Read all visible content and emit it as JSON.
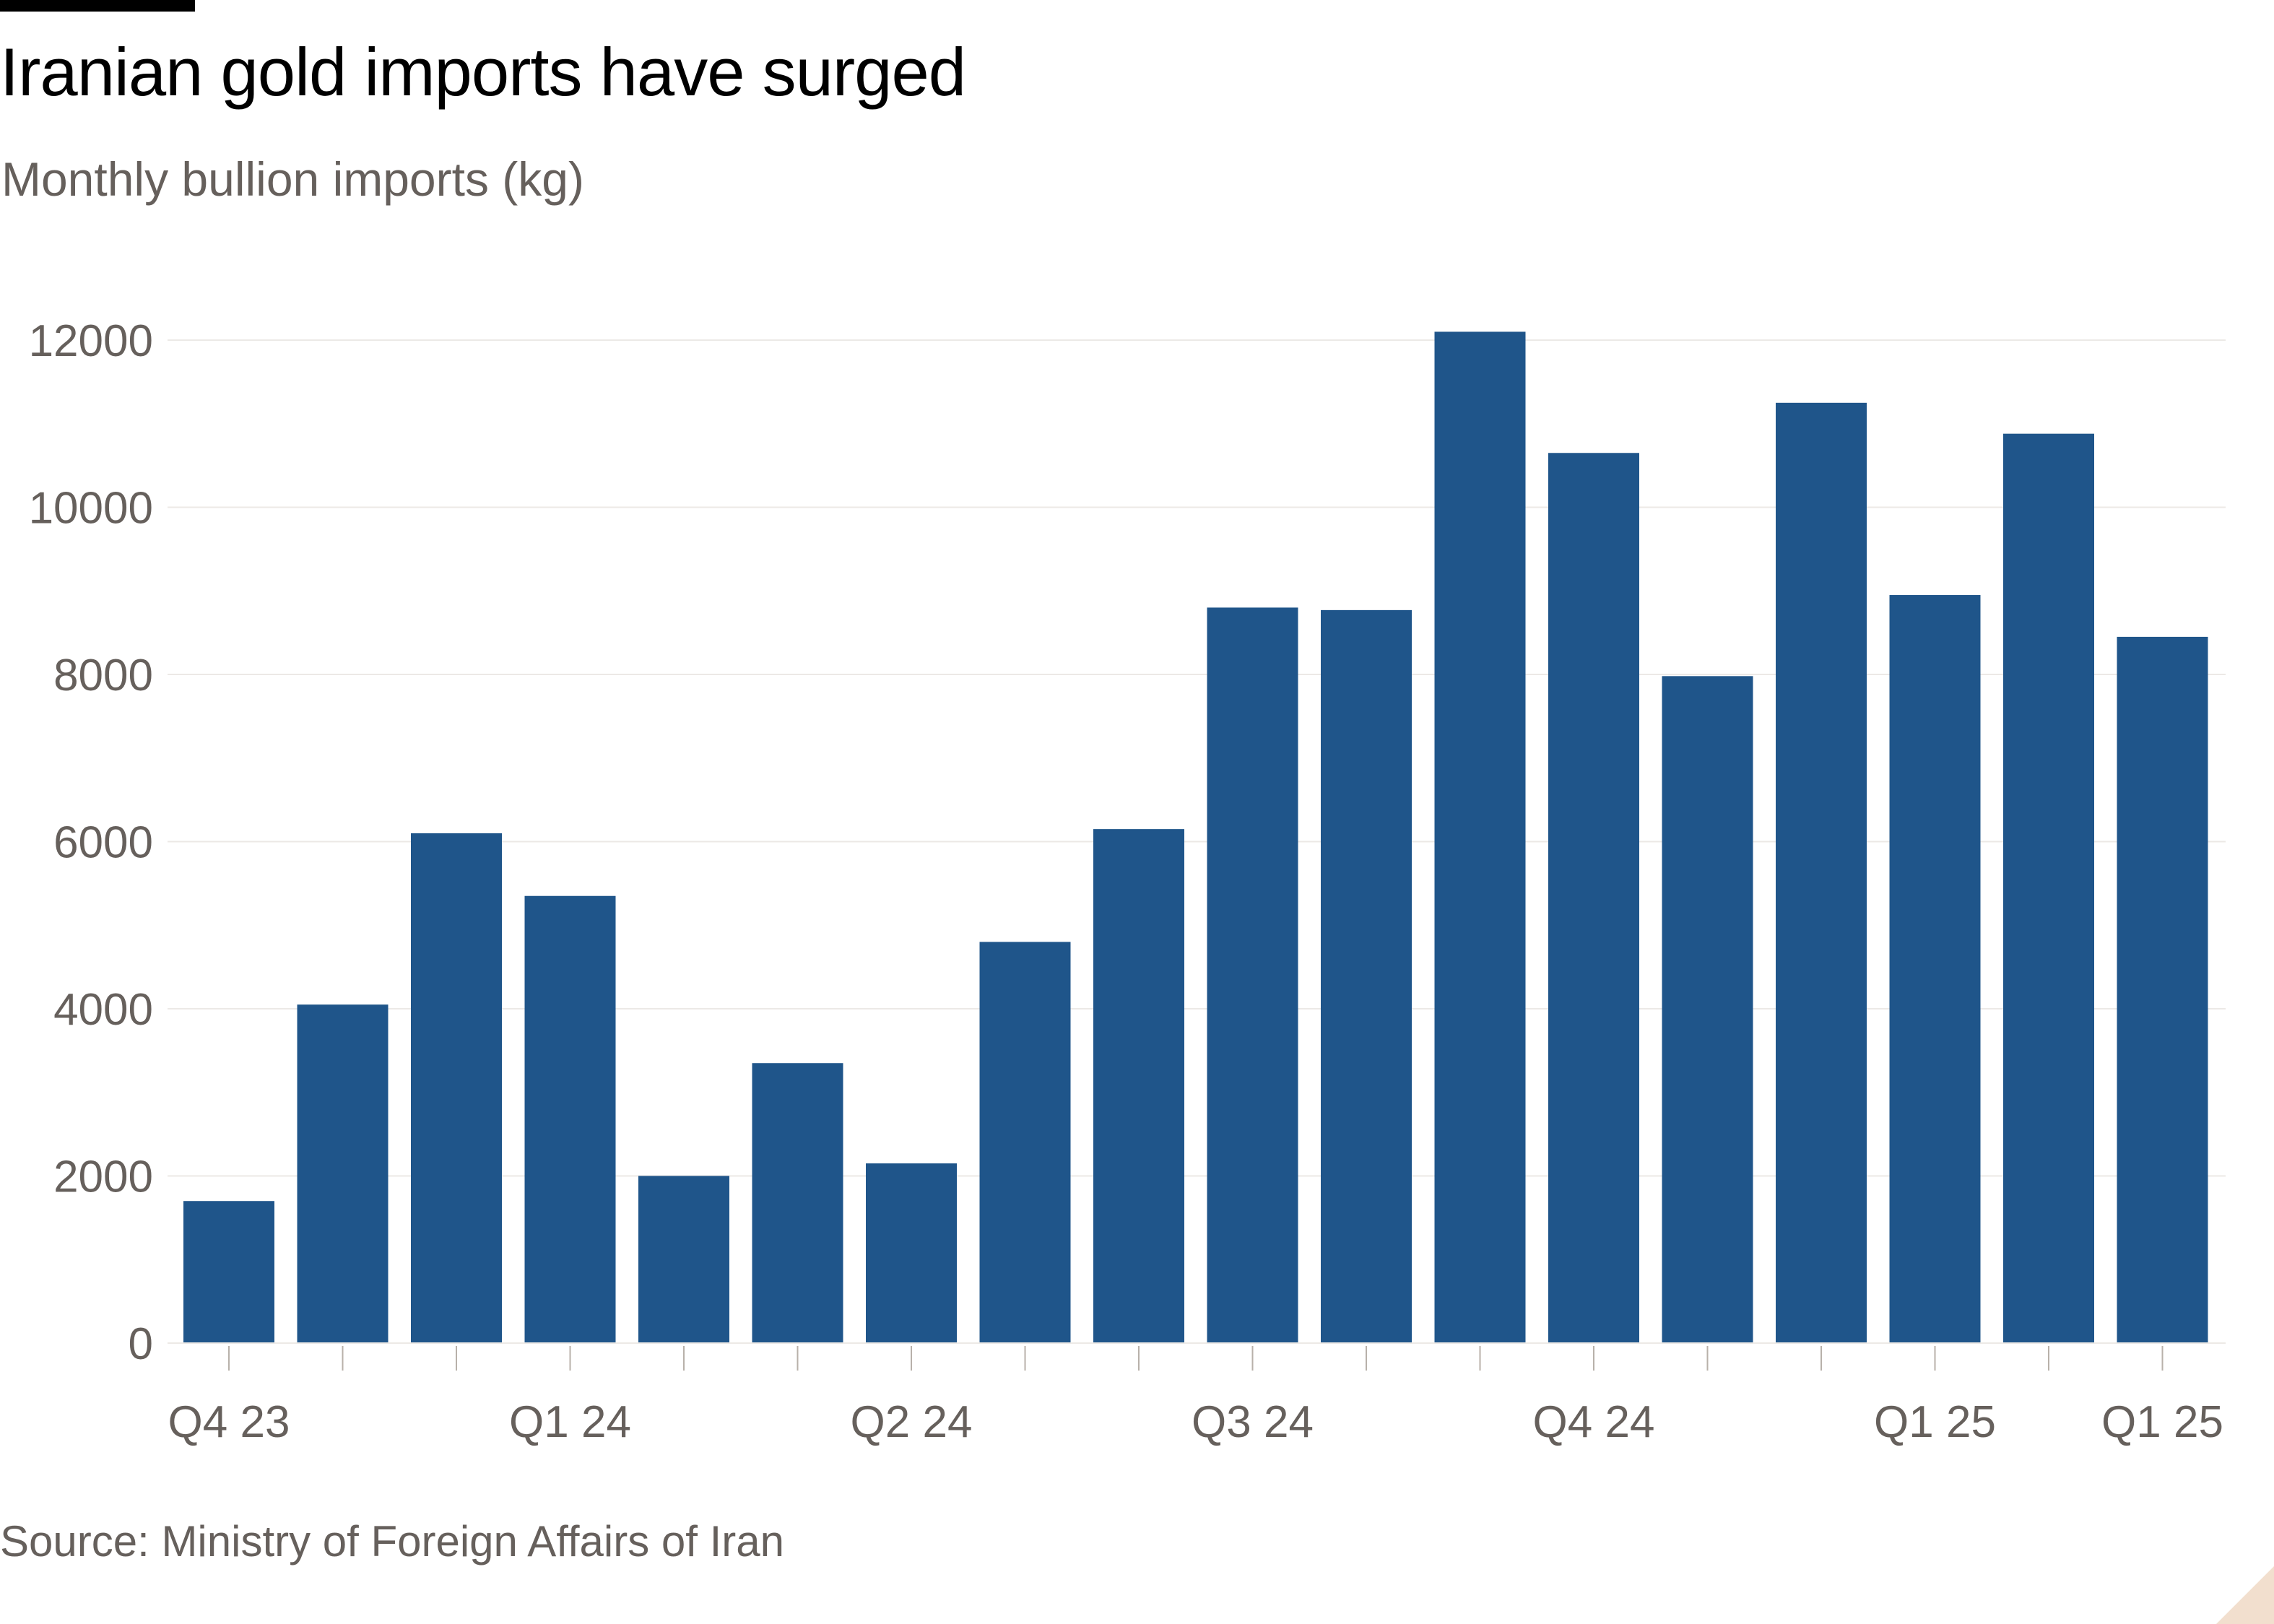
{
  "title": "Iranian gold imports have surged",
  "subtitle": "Monthly bullion imports (kg)",
  "source": "Source: Ministry of Foreign Affairs of Iran",
  "colors": {
    "bar": "#1f558a",
    "grid": "#ece9e6",
    "axis_text": "#66605c",
    "tick_mark": "#b8b1aa",
    "corner_mark": "#f2dfce"
  },
  "chart_data": {
    "type": "bar",
    "title": "Iranian gold imports have surged",
    "subtitle": "Monthly bullion imports (kg)",
    "xlabel": "",
    "ylabel": "",
    "ylim": [
      0,
      12000
    ],
    "y_ticks": [
      0,
      2000,
      4000,
      6000,
      8000,
      10000,
      12000
    ],
    "grid": true,
    "x_tick_labels": [
      {
        "label": "Q4 23",
        "index": 0
      },
      {
        "label": "Q1 24",
        "index": 3
      },
      {
        "label": "Q2 24",
        "index": 6
      },
      {
        "label": "Q3 24",
        "index": 9
      },
      {
        "label": "Q4 24",
        "index": 12
      },
      {
        "label": "Q1 25",
        "index": 15
      },
      {
        "label": "Q1 25",
        "index": 17
      }
    ],
    "values": [
      1700,
      4050,
      6100,
      5350,
      2000,
      3350,
      2150,
      4800,
      6150,
      8800,
      8770,
      12100,
      10650,
      7980,
      11250,
      8950,
      10880,
      8450
    ]
  }
}
